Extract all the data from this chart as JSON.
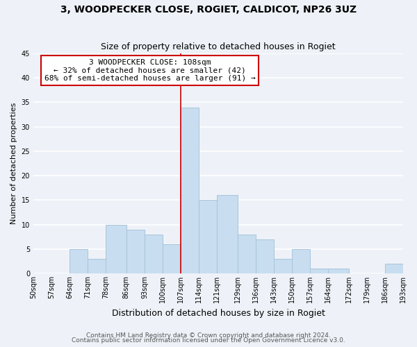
{
  "title": "3, WOODPECKER CLOSE, ROGIET, CALDICOT, NP26 3UZ",
  "subtitle": "Size of property relative to detached houses in Rogiet",
  "xlabel": "Distribution of detached houses by size in Rogiet",
  "ylabel": "Number of detached properties",
  "footnote1": "Contains HM Land Registry data © Crown copyright and database right 2024.",
  "footnote2": "Contains public sector information licensed under the Open Government Licence v3.0.",
  "bin_edges": [
    50,
    57,
    64,
    71,
    78,
    86,
    93,
    100,
    107,
    114,
    121,
    129,
    136,
    143,
    150,
    157,
    164,
    172,
    179,
    186,
    193
  ],
  "bin_labels": [
    "50sqm",
    "57sqm",
    "64sqm",
    "71sqm",
    "78sqm",
    "86sqm",
    "93sqm",
    "100sqm",
    "107sqm",
    "114sqm",
    "121sqm",
    "129sqm",
    "136sqm",
    "143sqm",
    "150sqm",
    "157sqm",
    "164sqm",
    "172sqm",
    "179sqm",
    "186sqm",
    "193sqm"
  ],
  "counts": [
    0,
    0,
    5,
    3,
    10,
    9,
    8,
    6,
    34,
    15,
    16,
    8,
    7,
    3,
    5,
    1,
    1,
    0,
    0,
    2
  ],
  "bar_color": "#c8ddf0",
  "bar_edgecolor": "#a8c4d8",
  "vline_x": 107,
  "vline_color": "#cc0000",
  "annotation_lines": [
    "3 WOODPECKER CLOSE: 108sqm",
    "← 32% of detached houses are smaller (42)",
    "68% of semi-detached houses are larger (91) →"
  ],
  "annotation_box_edgecolor": "#cc0000",
  "annotation_box_facecolor": "#ffffff",
  "ylim": [
    0,
    45
  ],
  "yticks": [
    0,
    5,
    10,
    15,
    20,
    25,
    30,
    35,
    40,
    45
  ],
  "background_color": "#eef2f8",
  "grid_color": "#ffffff",
  "title_fontsize": 10,
  "subtitle_fontsize": 9,
  "xlabel_fontsize": 9,
  "ylabel_fontsize": 8,
  "tick_fontsize": 7,
  "footnote_fontsize": 6.5
}
